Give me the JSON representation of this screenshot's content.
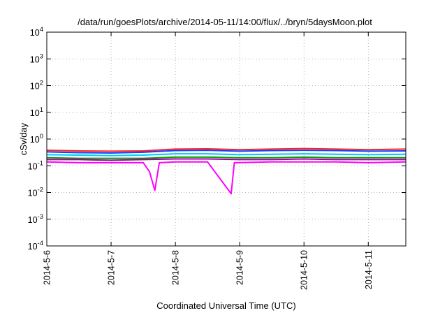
{
  "chart_data": {
    "type": "line",
    "title": "/data/run/goesPlots/archive/2014-05-11/14:00/flux/../bryn/5daysMoon.plot",
    "xlabel": "Coordinated Universal Time (UTC)",
    "ylabel": "cSv/day",
    "y_scale": "log",
    "ylim": [
      0.0001,
      10000
    ],
    "xlim": [
      "2014-05-06 00:00",
      "2014-05-11 14:00"
    ],
    "grid": true,
    "legend": "none",
    "y_ticks": [
      {
        "value": 0.0001,
        "base": "10",
        "exp": "-4"
      },
      {
        "value": 0.001,
        "base": "10",
        "exp": "-3"
      },
      {
        "value": 0.01,
        "base": "10",
        "exp": "-2"
      },
      {
        "value": 0.1,
        "base": "10",
        "exp": "-1"
      },
      {
        "value": 1,
        "base": "10",
        "exp": "0"
      },
      {
        "value": 10,
        "base": "10",
        "exp": "1"
      },
      {
        "value": 100,
        "base": "10",
        "exp": "2"
      },
      {
        "value": 1000,
        "base": "10",
        "exp": "3"
      },
      {
        "value": 10000,
        "base": "10",
        "exp": "4"
      }
    ],
    "x_ticks": [
      {
        "value": "2014-05-06 00:00",
        "label": "2014-5-6"
      },
      {
        "value": "2014-05-07 00:00",
        "label": "2014-5-7"
      },
      {
        "value": "2014-05-08 00:00",
        "label": "2014-5-8"
      },
      {
        "value": "2014-05-09 00:00",
        "label": "2014-5-9"
      },
      {
        "value": "2014-05-10 00:00",
        "label": "2014-5-10"
      },
      {
        "value": "2014-05-11 00:00",
        "label": "2014-5-11"
      }
    ],
    "series": [
      {
        "color": "#ff2020",
        "values": [
          {
            "x": "2014-05-06 00:00",
            "y": 0.38
          },
          {
            "x": "2014-05-06 12:00",
            "y": 0.36
          },
          {
            "x": "2014-05-07 00:00",
            "y": 0.35
          },
          {
            "x": "2014-05-07 12:00",
            "y": 0.36
          },
          {
            "x": "2014-05-08 00:00",
            "y": 0.42
          },
          {
            "x": "2014-05-08 12:00",
            "y": 0.43
          },
          {
            "x": "2014-05-09 00:00",
            "y": 0.4
          },
          {
            "x": "2014-05-09 12:00",
            "y": 0.42
          },
          {
            "x": "2014-05-10 00:00",
            "y": 0.44
          },
          {
            "x": "2014-05-10 12:00",
            "y": 0.42
          },
          {
            "x": "2014-05-11 00:00",
            "y": 0.4
          },
          {
            "x": "2014-05-11 14:00",
            "y": 0.42
          }
        ]
      },
      {
        "color": "#1040ff",
        "values": [
          {
            "x": "2014-05-06 00:00",
            "y": 0.33
          },
          {
            "x": "2014-05-06 12:00",
            "y": 0.31
          },
          {
            "x": "2014-05-07 00:00",
            "y": 0.3
          },
          {
            "x": "2014-05-07 12:00",
            "y": 0.32
          },
          {
            "x": "2014-05-08 00:00",
            "y": 0.37
          },
          {
            "x": "2014-05-08 12:00",
            "y": 0.38
          },
          {
            "x": "2014-05-09 00:00",
            "y": 0.35
          },
          {
            "x": "2014-05-09 12:00",
            "y": 0.37
          },
          {
            "x": "2014-05-10 00:00",
            "y": 0.38
          },
          {
            "x": "2014-05-10 12:00",
            "y": 0.37
          },
          {
            "x": "2014-05-11 00:00",
            "y": 0.35
          },
          {
            "x": "2014-05-11 14:00",
            "y": 0.36
          }
        ]
      },
      {
        "color": "#00c8ff",
        "values": [
          {
            "x": "2014-05-06 00:00",
            "y": 0.26
          },
          {
            "x": "2014-05-06 12:00",
            "y": 0.25
          },
          {
            "x": "2014-05-07 00:00",
            "y": 0.24
          },
          {
            "x": "2014-05-07 12:00",
            "y": 0.25
          },
          {
            "x": "2014-05-08 00:00",
            "y": 0.28
          },
          {
            "x": "2014-05-08 12:00",
            "y": 0.28
          },
          {
            "x": "2014-05-09 00:00",
            "y": 0.26
          },
          {
            "x": "2014-05-09 12:00",
            "y": 0.27
          },
          {
            "x": "2014-05-10 00:00",
            "y": 0.28
          },
          {
            "x": "2014-05-10 12:00",
            "y": 0.27
          },
          {
            "x": "2014-05-11 00:00",
            "y": 0.26
          },
          {
            "x": "2014-05-11 14:00",
            "y": 0.27
          }
        ]
      },
      {
        "color": "#00a000",
        "values": [
          {
            "x": "2014-05-06 00:00",
            "y": 0.2
          },
          {
            "x": "2014-05-06 12:00",
            "y": 0.19
          },
          {
            "x": "2014-05-07 00:00",
            "y": 0.19
          },
          {
            "x": "2014-05-07 12:00",
            "y": 0.19
          },
          {
            "x": "2014-05-08 00:00",
            "y": 0.21
          },
          {
            "x": "2014-05-08 12:00",
            "y": 0.21
          },
          {
            "x": "2014-05-09 00:00",
            "y": 0.2
          },
          {
            "x": "2014-05-09 12:00",
            "y": 0.2
          },
          {
            "x": "2014-05-10 00:00",
            "y": 0.21
          },
          {
            "x": "2014-05-10 12:00",
            "y": 0.2
          },
          {
            "x": "2014-05-11 00:00",
            "y": 0.2
          },
          {
            "x": "2014-05-11 14:00",
            "y": 0.2
          }
        ]
      },
      {
        "color": "#a000a0",
        "values": [
          {
            "x": "2014-05-06 00:00",
            "y": 0.17
          },
          {
            "x": "2014-05-06 12:00",
            "y": 0.17
          },
          {
            "x": "2014-05-07 00:00",
            "y": 0.16
          },
          {
            "x": "2014-05-07 12:00",
            "y": 0.17
          },
          {
            "x": "2014-05-08 00:00",
            "y": 0.18
          },
          {
            "x": "2014-05-08 12:00",
            "y": 0.18
          },
          {
            "x": "2014-05-09 00:00",
            "y": 0.17
          },
          {
            "x": "2014-05-09 12:00",
            "y": 0.17
          },
          {
            "x": "2014-05-10 00:00",
            "y": 0.18
          },
          {
            "x": "2014-05-10 12:00",
            "y": 0.17
          },
          {
            "x": "2014-05-11 00:00",
            "y": 0.17
          },
          {
            "x": "2014-05-11 14:00",
            "y": 0.17
          }
        ]
      },
      {
        "color": "#ff00ff",
        "values": [
          {
            "x": "2014-05-06 00:00",
            "y": 0.14
          },
          {
            "x": "2014-05-06 12:00",
            "y": 0.13
          },
          {
            "x": "2014-05-07 00:00",
            "y": 0.13
          },
          {
            "x": "2014-05-07 12:00",
            "y": 0.13
          },
          {
            "x": "2014-05-07 14:20",
            "y": 0.06
          },
          {
            "x": "2014-05-07 16:20",
            "y": 0.012
          },
          {
            "x": "2014-05-07 18:00",
            "y": 0.13
          },
          {
            "x": "2014-05-08 00:00",
            "y": 0.14
          },
          {
            "x": "2014-05-08 12:00",
            "y": 0.14
          },
          {
            "x": "2014-05-08 20:50",
            "y": 0.009
          },
          {
            "x": "2014-05-08 22:00",
            "y": 0.13
          },
          {
            "x": "2014-05-09 12:00",
            "y": 0.14
          },
          {
            "x": "2014-05-10 00:00",
            "y": 0.14
          },
          {
            "x": "2014-05-10 12:00",
            "y": 0.14
          },
          {
            "x": "2014-05-11 00:00",
            "y": 0.13
          },
          {
            "x": "2014-05-11 14:00",
            "y": 0.14
          }
        ]
      }
    ]
  }
}
